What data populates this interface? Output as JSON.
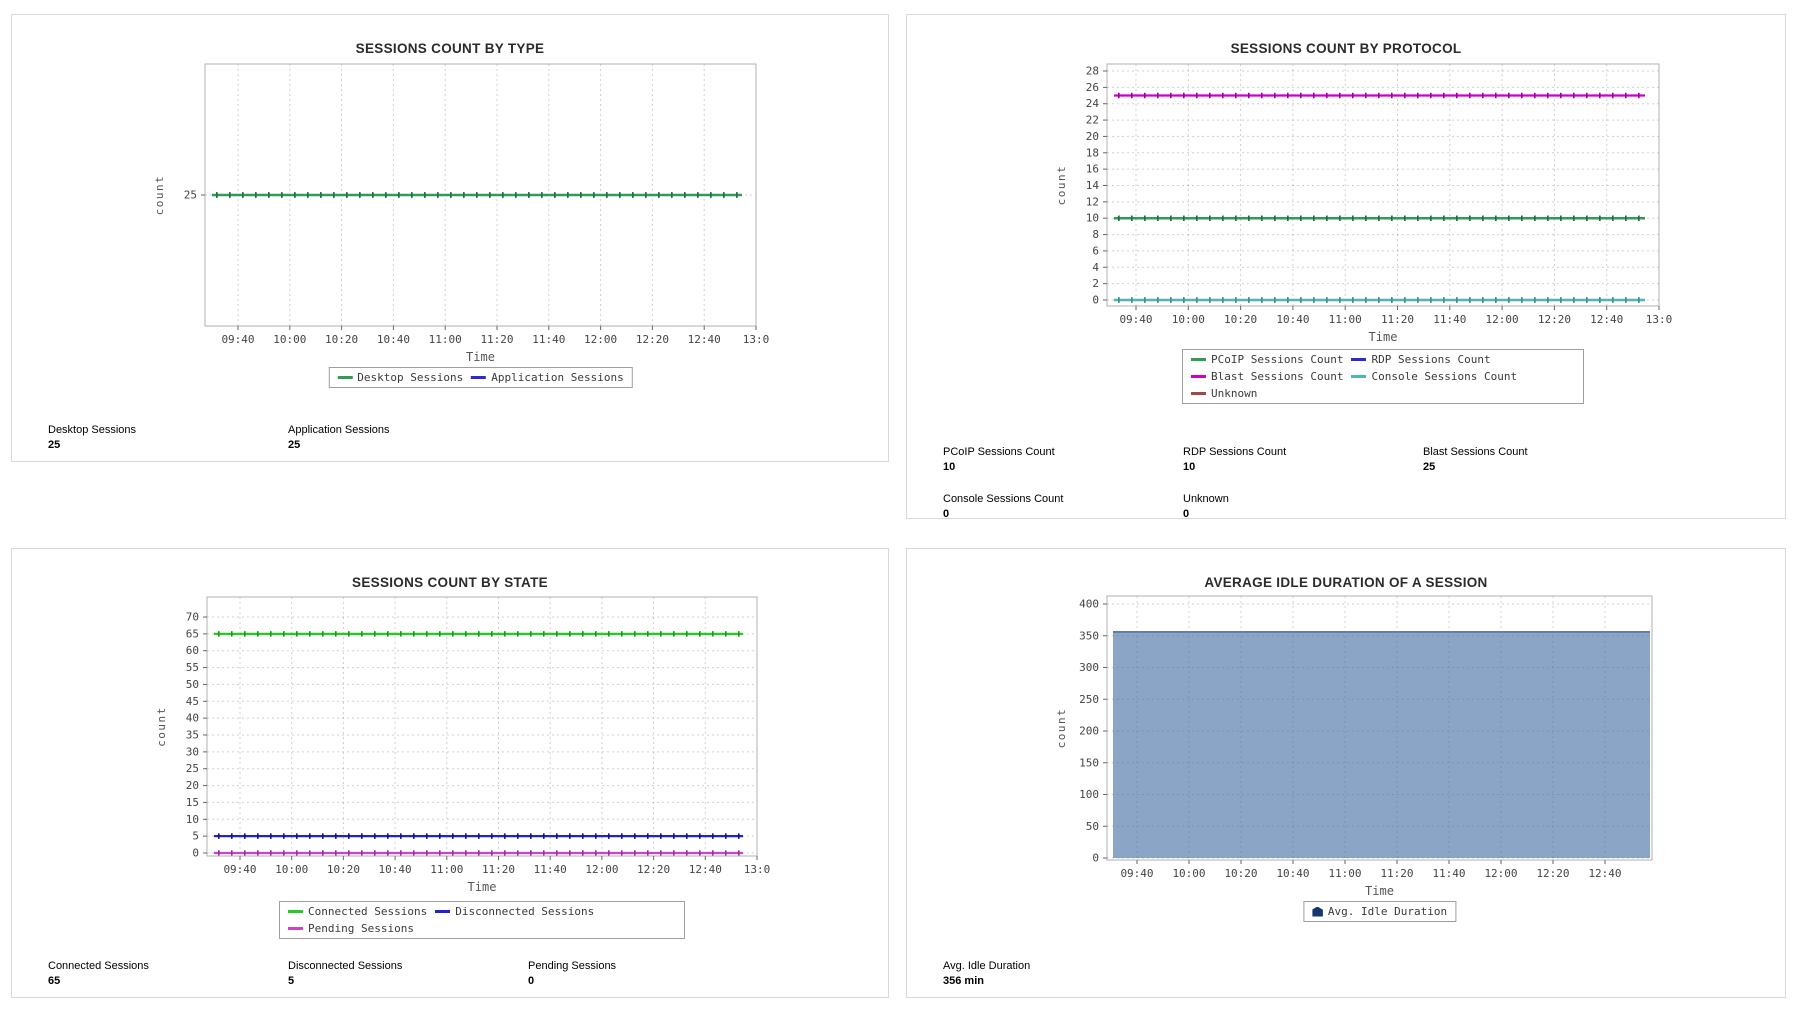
{
  "chart_data": [
    {
      "type": "line",
      "title": "SESSIONS COUNT BY TYPE",
      "xlabel": "Time",
      "ylabel": "count",
      "x_ticks": [
        "09:40",
        "10:00",
        "10:20",
        "10:40",
        "11:00",
        "11:20",
        "11:40",
        "12:00",
        "12:20",
        "12:40",
        "13:0"
      ],
      "y_ticks": [
        25
      ],
      "ylim": [
        0,
        50
      ],
      "grid": true,
      "legend_position": "bottom",
      "series": [
        {
          "name": "Desktop Sessions",
          "constant_value": 25,
          "color": "#2f9e4f",
          "marker_color": "#1c733a"
        },
        {
          "name": "Application Sessions",
          "constant_value": 25,
          "color": "#2b2bcd",
          "marker_color": "#14148e"
        }
      ],
      "summary": [
        {
          "label": "Desktop Sessions",
          "value": "25"
        },
        {
          "label": "Application Sessions",
          "value": "25"
        }
      ]
    },
    {
      "type": "line",
      "title": "SESSIONS COUNT BY PROTOCOL",
      "xlabel": "Time",
      "ylabel": "count",
      "x_ticks": [
        "09:40",
        "10:00",
        "10:20",
        "10:40",
        "11:00",
        "11:20",
        "11:40",
        "12:00",
        "12:20",
        "12:40",
        "13:0"
      ],
      "y_ticks": [
        0,
        2,
        4,
        6,
        8,
        10,
        12,
        14,
        16,
        18,
        20,
        22,
        24,
        26,
        28
      ],
      "ylim": [
        0,
        28
      ],
      "grid": true,
      "legend_position": "bottom",
      "series": [
        {
          "name": "PCoIP Sessions Count",
          "constant_value": 10,
          "color": "#2f9e4f",
          "marker_color": "#1c733a"
        },
        {
          "name": "RDP Sessions Count",
          "constant_value": 10,
          "color": "#2b2bcd",
          "marker_color": "#14148e"
        },
        {
          "name": "Blast Sessions Count",
          "constant_value": 25,
          "color": "#cc00cc",
          "marker_color": "#990099"
        },
        {
          "name": "Console Sessions Count",
          "constant_value": 0,
          "color": "#49b8b8",
          "marker_color": "#2e9494"
        },
        {
          "name": "Unknown",
          "constant_value": 0,
          "color": "#a04a4a",
          "marker_color": "#7c3333"
        }
      ],
      "summary": [
        {
          "label": "PCoIP Sessions Count",
          "value": "10"
        },
        {
          "label": "RDP Sessions Count",
          "value": "10"
        },
        {
          "label": "Blast Sessions Count",
          "value": "25"
        },
        {
          "label": "Console Sessions Count",
          "value": "0"
        },
        {
          "label": "Unknown",
          "value": "0"
        }
      ]
    },
    {
      "type": "line",
      "title": "SESSIONS COUNT BY STATE",
      "xlabel": "Time",
      "ylabel": "count",
      "x_ticks": [
        "09:40",
        "10:00",
        "10:20",
        "10:40",
        "11:00",
        "11:20",
        "11:40",
        "12:00",
        "12:20",
        "12:40",
        "13:0"
      ],
      "y_ticks": [
        0,
        5,
        10,
        15,
        20,
        25,
        30,
        35,
        40,
        45,
        50,
        55,
        60,
        65,
        70
      ],
      "ylim": [
        0,
        70
      ],
      "grid": true,
      "legend_position": "bottom",
      "series": [
        {
          "name": "Connected Sessions",
          "constant_value": 65,
          "color": "#24cb24",
          "marker_color": "#0f9e0f"
        },
        {
          "name": "Disconnected Sessions",
          "constant_value": 5,
          "color": "#2222cc",
          "marker_color": "#111188"
        },
        {
          "name": "Pending Sessions",
          "constant_value": 0,
          "color": "#cc44cc",
          "marker_color": "#a02ba0"
        }
      ],
      "summary": [
        {
          "label": "Connected Sessions",
          "value": "65"
        },
        {
          "label": "Disconnected Sessions",
          "value": "5"
        },
        {
          "label": "Pending Sessions",
          "value": "0"
        }
      ]
    },
    {
      "type": "area",
      "title": "AVERAGE IDLE DURATION OF A SESSION",
      "xlabel": "Time",
      "ylabel": "count",
      "x_ticks": [
        "09:40",
        "10:00",
        "10:20",
        "10:40",
        "11:00",
        "11:20",
        "11:40",
        "12:00",
        "12:20",
        "12:40"
      ],
      "y_ticks": [
        0,
        50,
        100,
        150,
        200,
        250,
        300,
        350,
        400
      ],
      "ylim": [
        0,
        400
      ],
      "grid": true,
      "legend_position": "bottom",
      "series": [
        {
          "name": "Avg. Idle Duration",
          "constant_value": 356,
          "color": "#5d7eab",
          "fill_color": "#8aa5c6",
          "legend_icon_color": "#17366b"
        }
      ],
      "summary": [
        {
          "label": "Avg. Idle Duration",
          "value": "356 min"
        }
      ]
    }
  ]
}
